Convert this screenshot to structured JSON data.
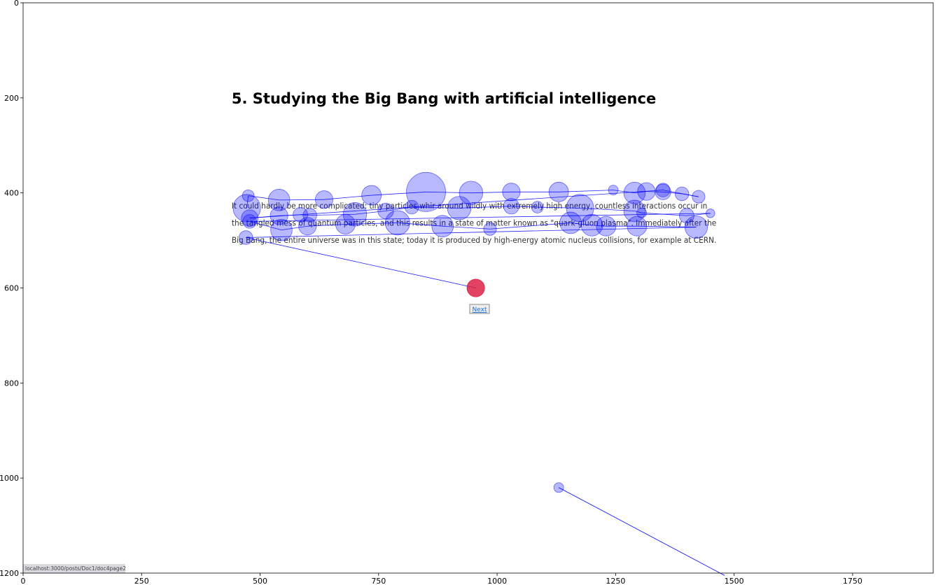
{
  "chart_data": {
    "type": "scatter",
    "title": "",
    "xlabel": "",
    "ylabel": "",
    "xlim": [
      0,
      1920
    ],
    "ylim": [
      1200,
      0
    ],
    "x_ticks": [
      0,
      250,
      500,
      750,
      1000,
      1250,
      1500,
      1750
    ],
    "y_ticks": [
      0,
      200,
      400,
      600,
      800,
      1000,
      1200
    ],
    "grid": false,
    "background_stimulus": {
      "heading": "5. Studying the Big Bang with artificial intelligence",
      "paragraph_lines": [
        "It could hardly be more complicated: tiny particles whir around wildly with extremely high energy, countless interactions occur in",
        "the tangled mess of quantum particles, and this results in a state of matter known as \"quark-gluon plasma\". Immediately after the",
        "Big Bang, the entire universe was in this state; today it is produced by high-energy atomic nucleus collisions, for example at CERN."
      ],
      "next_button": "Next",
      "status_url": "localhost:3000/posts/Doc1/doc4page2"
    },
    "series": [
      {
        "kind": "fixation_scanpath",
        "color": "#0000ff",
        "points": [
          {
            "x": 472,
            "y": 432,
            "r": 2.8
          },
          {
            "x": 475,
            "y": 406,
            "r": 1.2
          },
          {
            "x": 540,
            "y": 415,
            "r": 2.2
          },
          {
            "x": 635,
            "y": 414,
            "r": 1.8
          },
          {
            "x": 735,
            "y": 405,
            "r": 2.0
          },
          {
            "x": 850,
            "y": 398,
            "r": 4.0
          },
          {
            "x": 945,
            "y": 400,
            "r": 2.4
          },
          {
            "x": 1030,
            "y": 398,
            "r": 1.8
          },
          {
            "x": 1130,
            "y": 398,
            "r": 2.0
          },
          {
            "x": 1245,
            "y": 394,
            "r": 1.0
          },
          {
            "x": 1290,
            "y": 400,
            "r": 2.2
          },
          {
            "x": 1315,
            "y": 397,
            "r": 1.8
          },
          {
            "x": 1350,
            "y": 398,
            "r": 1.6
          },
          {
            "x": 1390,
            "y": 402,
            "r": 1.4
          },
          {
            "x": 1425,
            "y": 408,
            "r": 1.3
          },
          {
            "x": 1350,
            "y": 394,
            "r": 1.4
          },
          {
            "x": 478,
            "y": 453,
            "r": 1.7
          },
          {
            "x": 540,
            "y": 448,
            "r": 1.8
          },
          {
            "x": 585,
            "y": 446,
            "r": 1.5
          },
          {
            "x": 605,
            "y": 447,
            "r": 1.4
          },
          {
            "x": 700,
            "y": 445,
            "r": 2.4
          },
          {
            "x": 765,
            "y": 438,
            "r": 1.6
          },
          {
            "x": 820,
            "y": 430,
            "r": 1.4
          },
          {
            "x": 920,
            "y": 432,
            "r": 2.4
          },
          {
            "x": 1030,
            "y": 428,
            "r": 1.6
          },
          {
            "x": 1085,
            "y": 430,
            "r": 1.2
          },
          {
            "x": 1175,
            "y": 432,
            "r": 2.8
          },
          {
            "x": 1290,
            "y": 438,
            "r": 2.2
          },
          {
            "x": 1305,
            "y": 442,
            "r": 1.0
          },
          {
            "x": 1400,
            "y": 448,
            "r": 1.5
          },
          {
            "x": 1450,
            "y": 443,
            "r": 0.9
          },
          {
            "x": 478,
            "y": 460,
            "r": 1.4
          },
          {
            "x": 545,
            "y": 478,
            "r": 2.2
          },
          {
            "x": 600,
            "y": 470,
            "r": 1.8
          },
          {
            "x": 680,
            "y": 466,
            "r": 2.0
          },
          {
            "x": 790,
            "y": 463,
            "r": 2.5
          },
          {
            "x": 885,
            "y": 470,
            "r": 2.2
          },
          {
            "x": 985,
            "y": 476,
            "r": 1.3
          },
          {
            "x": 1155,
            "y": 463,
            "r": 2.2
          },
          {
            "x": 1200,
            "y": 468,
            "r": 2.2
          },
          {
            "x": 1230,
            "y": 470,
            "r": 2.0
          },
          {
            "x": 1295,
            "y": 470,
            "r": 2.0
          },
          {
            "x": 1420,
            "y": 472,
            "r": 2.3
          },
          {
            "x": 470,
            "y": 494,
            "r": 1.4
          },
          {
            "x": 955,
            "y": 600,
            "r": 1.8,
            "highlight": true
          }
        ],
        "trail": [
          {
            "x": 1130,
            "y": 1020,
            "r": 1.0
          },
          {
            "x": 1480,
            "y": 1205,
            "r": 0
          }
        ]
      }
    ]
  }
}
